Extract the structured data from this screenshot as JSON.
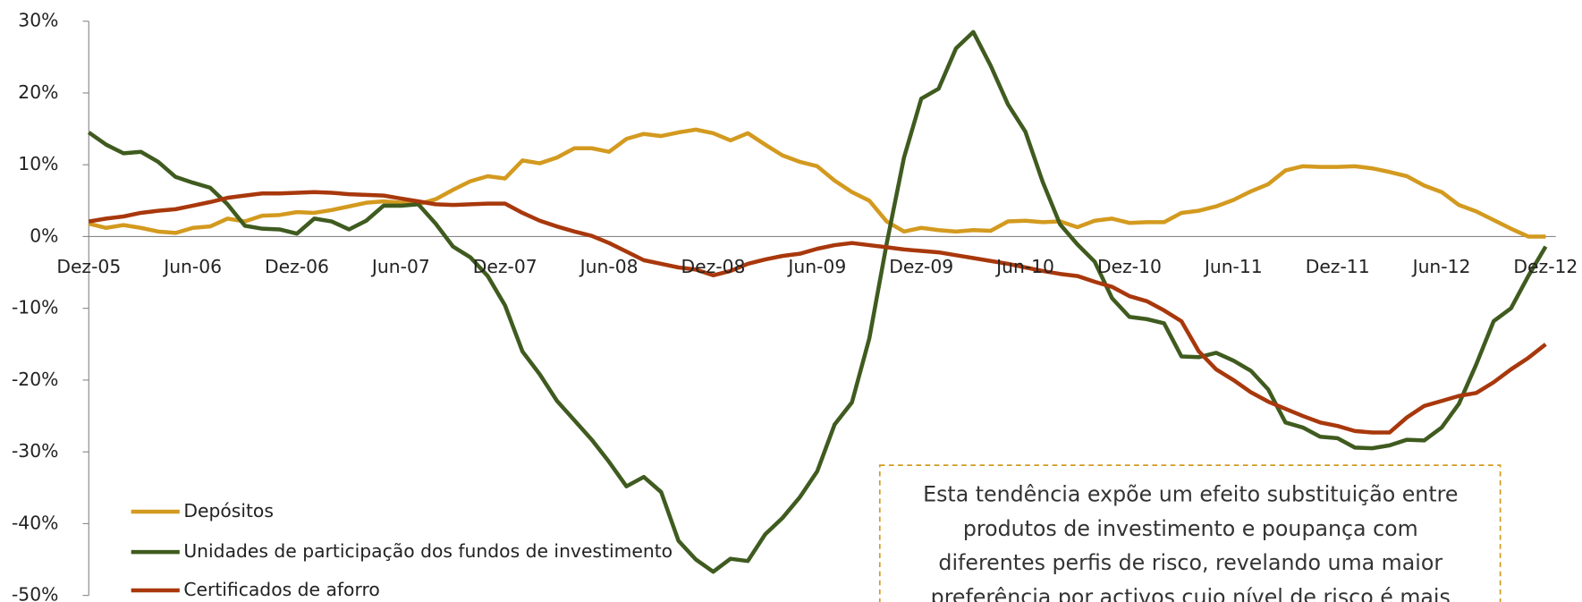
{
  "chart_data": {
    "type": "line",
    "categories": [
      "Dez-05",
      null,
      null,
      null,
      null,
      null,
      "Jun-06",
      null,
      null,
      null,
      null,
      null,
      "Dez-06",
      null,
      null,
      null,
      null,
      null,
      "Jun-07",
      null,
      null,
      null,
      null,
      null,
      "Dez-07",
      null,
      null,
      null,
      null,
      null,
      "Jun-08",
      null,
      null,
      null,
      null,
      null,
      "Dez-08",
      null,
      null,
      null,
      null,
      null,
      "Jun-09",
      null,
      null,
      null,
      null,
      null,
      "Dez-09",
      null,
      null,
      null,
      null,
      null,
      "Jun-10",
      null,
      null,
      null,
      null,
      null,
      "Dez-10",
      null,
      null,
      null,
      null,
      null,
      "Jun-11",
      null,
      null,
      null,
      null,
      null,
      "Dez-11",
      null,
      null,
      null,
      null,
      null,
      "Jun-12",
      null,
      null,
      null,
      null,
      null,
      "Dez-12"
    ],
    "series": [
      {
        "name": "Depósitos",
        "color": "#d39a1f",
        "values": [
          1.8,
          1.2,
          1.6,
          1.2,
          0.7,
          0.5,
          1.2,
          1.4,
          2.5,
          2.1,
          2.9,
          3.0,
          3.4,
          3.3,
          3.7,
          4.2,
          4.7,
          4.9,
          4.7,
          4.5,
          5.2,
          6.5,
          7.7,
          8.4,
          8.1,
          10.6,
          10.2,
          11.0,
          12.3,
          12.3,
          11.8,
          13.6,
          14.3,
          14.0,
          14.5,
          14.9,
          14.4,
          13.4,
          14.4,
          12.8,
          11.3,
          10.4,
          9.8,
          7.8,
          6.2,
          5.0,
          2.1,
          0.7,
          1.2,
          0.9,
          0.7,
          0.9,
          0.8,
          2.1,
          2.2,
          2.0,
          2.1,
          1.3,
          2.2,
          2.5,
          1.9,
          2.0,
          2.0,
          3.3,
          3.6,
          4.2,
          5.1,
          6.3,
          7.3,
          9.2,
          9.8,
          9.7,
          9.7,
          9.8,
          9.5,
          9.0,
          8.4,
          7.1,
          6.2,
          4.4,
          3.5,
          2.3,
          1.1,
          0.0,
          0.0
        ]
      },
      {
        "name": "Unidades de participação dos fundos de investimento",
        "color": "#3f5b1f",
        "values": [
          14.5,
          12.8,
          11.6,
          11.8,
          10.4,
          8.3,
          7.5,
          6.8,
          4.5,
          1.5,
          1.1,
          1.0,
          0.4,
          2.5,
          2.1,
          1.0,
          2.2,
          4.3,
          4.3,
          4.5,
          1.8,
          -1.4,
          -2.9,
          -5.5,
          -9.6,
          -16,
          -19.2,
          -22.9,
          -25.6,
          -28.3,
          -31.4,
          -34.8,
          -33.5,
          -35.6,
          -42.4,
          -45,
          -46.7,
          -44.9,
          -45.2,
          -41.5,
          -39.2,
          -36.3,
          -32.7,
          -26.2,
          -23.1,
          -14.2,
          -1.0,
          11.0,
          19.2,
          20.6,
          26.2,
          28.5,
          23.8,
          18.4,
          14.6,
          7.6,
          1.7,
          -1.1,
          -3.5,
          -8.6,
          -11.2,
          -11.5,
          -12.1,
          -16.7,
          -16.8,
          -16.2,
          -17.3,
          -18.7,
          -21.3,
          -25.9,
          -26.6,
          -27.9,
          -28.1,
          -29.4,
          -29.5,
          -29.1,
          -28.3,
          -28.4,
          -26.6,
          -23.3,
          -17.8,
          -11.8,
          -10.0,
          -5.5,
          -1.4
        ]
      },
      {
        "name": "Certificados de aforro",
        "color": "#a8380c",
        "values": [
          2.1,
          2.5,
          2.8,
          3.3,
          3.6,
          3.8,
          4.3,
          4.8,
          5.4,
          5.7,
          6.0,
          6.0,
          6.1,
          6.2,
          6.1,
          5.9,
          5.8,
          5.7,
          5.3,
          4.9,
          4.5,
          4.4,
          4.5,
          4.6,
          4.6,
          3.3,
          2.2,
          1.4,
          0.7,
          0.1,
          -0.9,
          -2.1,
          -3.3,
          -3.8,
          -4.3,
          -4.6,
          -5.4,
          -4.8,
          -3.8,
          -3.2,
          -2.7,
          -2.4,
          -1.7,
          -1.2,
          -0.9,
          -1.2,
          -1.5,
          -1.8,
          -2.0,
          -2.2,
          -2.6,
          -3.0,
          -3.4,
          -3.8,
          -4.3,
          -4.8,
          -5.2,
          -5.5,
          -6.3,
          -7.0,
          -8.3,
          -9.0,
          -10.3,
          -11.8,
          -16.0,
          -18.5,
          -20.0,
          -21.7,
          -23.0,
          -24.0,
          -25.0,
          -25.9,
          -26.4,
          -27.1,
          -27.3,
          -27.3,
          -25.2,
          -23.6,
          -22.9,
          -22.2,
          -21.8,
          -20.3,
          -18.5,
          -16.9,
          -15.0
        ]
      }
    ],
    "ylim": [
      -50,
      30
    ],
    "yticks": [
      {
        "value": -50,
        "label": "-50%"
      },
      {
        "value": -40,
        "label": "-40%"
      },
      {
        "value": -30,
        "label": "-30%"
      },
      {
        "value": -20,
        "label": "-20%"
      },
      {
        "value": -10,
        "label": "-10%"
      },
      {
        "value": 0,
        "label": "0%"
      },
      {
        "value": 10,
        "label": "10%"
      },
      {
        "value": 20,
        "label": "20%"
      },
      {
        "value": 30,
        "label": "30%"
      }
    ],
    "legend": "lower left",
    "annotation": [
      "Esta tendência expõe um efeito substituição entre",
      "produtos de investimento e poupança com",
      "diferentes perfis de risco,  revelando uma maior",
      "preferência por activos cujo nível de risco é mais"
    ]
  }
}
